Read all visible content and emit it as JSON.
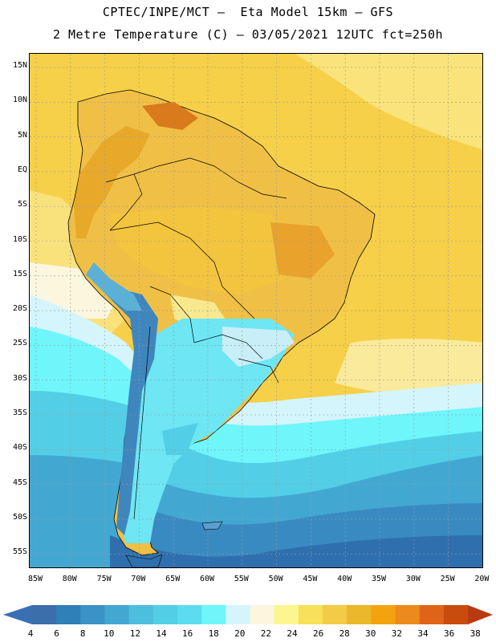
{
  "header": {
    "line1": "CPTEC/INPE/MCT –  Eta Model 15km – GFS",
    "line2": "2 Metre Temperature (C) – 03/05/2021 12UTC fct=250h"
  },
  "map": {
    "lat_ticks": [
      "15N",
      "10N",
      "5N",
      "EQ",
      "5S",
      "10S",
      "15S",
      "20S",
      "25S",
      "30S",
      "35S",
      "40S",
      "45S",
      "50S",
      "55S"
    ],
    "lon_ticks": [
      "85W",
      "80W",
      "75W",
      "70W",
      "65W",
      "60W",
      "55W",
      "50W",
      "45W",
      "40W",
      "35W",
      "30W",
      "25W",
      "20W"
    ],
    "ocean_color": "#f6d048"
  },
  "colorbar": {
    "labels": [
      "4",
      "6",
      "8",
      "10",
      "12",
      "14",
      "16",
      "18",
      "20",
      "22",
      "24",
      "26",
      "28",
      "30",
      "32",
      "34",
      "36",
      "38"
    ],
    "colors": [
      "#3b6eaa",
      "#2f7fb8",
      "#3a93c6",
      "#42a8d2",
      "#4dbede",
      "#52cfe6",
      "#5cdcef",
      "#6ef6fb",
      "#d4f5fb",
      "#fcf6df",
      "#fdf68e",
      "#f7e05a",
      "#f3cb48",
      "#ebb72b",
      "#f4a30f",
      "#ec8a1e",
      "#e06418",
      "#c94c0e"
    ],
    "low_arrow_color": "#3a70b3",
    "high_arrow_color": "#b83a10"
  }
}
